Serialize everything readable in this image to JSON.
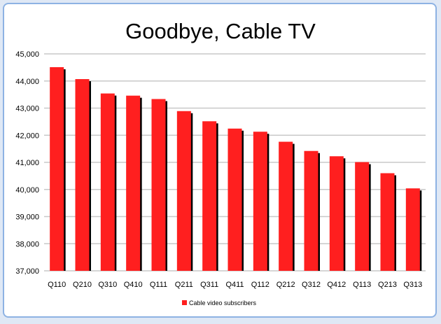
{
  "chart_data": {
    "type": "bar",
    "title": "Goodbye, Cable TV",
    "xlabel": "",
    "ylabel": "",
    "ylim": [
      37000,
      45000
    ],
    "yticks": [
      "37,000",
      "38,000",
      "39,000",
      "40,000",
      "41,000",
      "42,000",
      "43,000",
      "44,000",
      "45,000"
    ],
    "grid": true,
    "legend_position": "bottom",
    "categories": [
      "Q110",
      "Q210",
      "Q310",
      "Q410",
      "Q111",
      "Q211",
      "Q311",
      "Q411",
      "Q112",
      "Q212",
      "Q312",
      "Q412",
      "Q113",
      "Q213",
      "Q313"
    ],
    "series": [
      {
        "name": "Cable video subscribers",
        "color": "#ff1f1f",
        "values": [
          44510,
          44070,
          43540,
          43460,
          43335,
          42890,
          42515,
          42245,
          42130,
          41760,
          41420,
          41225,
          41010,
          40600,
          40040
        ]
      }
    ]
  }
}
